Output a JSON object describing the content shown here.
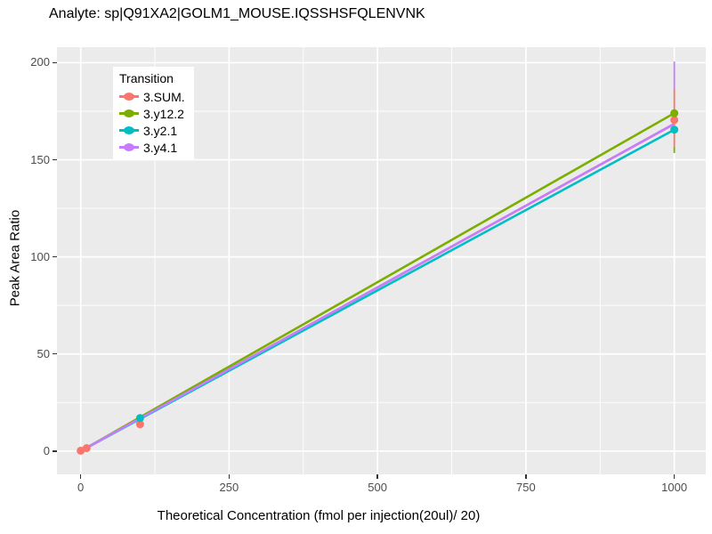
{
  "chart_data": {
    "type": "line",
    "title": "Analyte: sp|Q91XA2|GOLM1_MOUSE.IQSSHSFQLENVNK",
    "xlabel": "Theoretical Concentration (fmol per injection(20ul)/ 20)",
    "ylabel": "Peak Area Ratio",
    "legend_title": "Transition",
    "legend_position": "top-left-inside",
    "grid": "on",
    "panel_background": "#EBEBEB",
    "gridline_color": "#FFFFFF",
    "tick_label_color": "#4D4D4D",
    "xlim": [
      -40,
      1053
    ],
    "ylim": [
      -12,
      208
    ],
    "x_ticks": [
      0,
      250,
      500,
      750,
      1000
    ],
    "y_ticks": [
      0,
      50,
      100,
      150,
      200
    ],
    "x_minor_ticks": [
      125,
      375,
      625,
      875
    ],
    "y_minor_ticks": [
      25,
      75,
      125,
      175
    ],
    "series": [
      {
        "name": "3.SUM.",
        "color": "#F8766D",
        "fit_line": [
          [
            0,
            0
          ],
          [
            1000,
            168.5
          ]
        ],
        "points": [
          [
            0,
            0.2
          ],
          [
            10,
            1.5
          ],
          [
            100,
            13.8
          ],
          [
            1000,
            170.5
          ]
        ]
      },
      {
        "name": "3.y12.2",
        "color": "#7CAE00",
        "fit_line": [
          [
            0,
            0
          ],
          [
            1000,
            174
          ]
        ],
        "points": [
          [
            1000,
            174
          ]
        ]
      },
      {
        "name": "3.y2.1",
        "color": "#00BFC4",
        "fit_line": [
          [
            0,
            0
          ],
          [
            1000,
            165.5
          ]
        ],
        "points": [
          [
            100,
            17
          ],
          [
            1000,
            165.5
          ]
        ]
      },
      {
        "name": "3.y4.1",
        "color": "#C77CFF",
        "fit_line": [
          [
            0,
            0
          ],
          [
            1000,
            168.5
          ]
        ],
        "points": []
      }
    ],
    "error_bars": [
      {
        "x": 1000,
        "segments": [
          {
            "series": "3.y4.1",
            "color": "#C77CFF",
            "from": 200.6,
            "to": 186.5
          },
          {
            "series": "3.SUM.",
            "color": "#F8766D",
            "from": 186.5,
            "to": 156.8
          },
          {
            "series": "3.y12.2",
            "color": "#7CAE00",
            "from": 156.8,
            "to": 153.5
          }
        ]
      }
    ]
  }
}
